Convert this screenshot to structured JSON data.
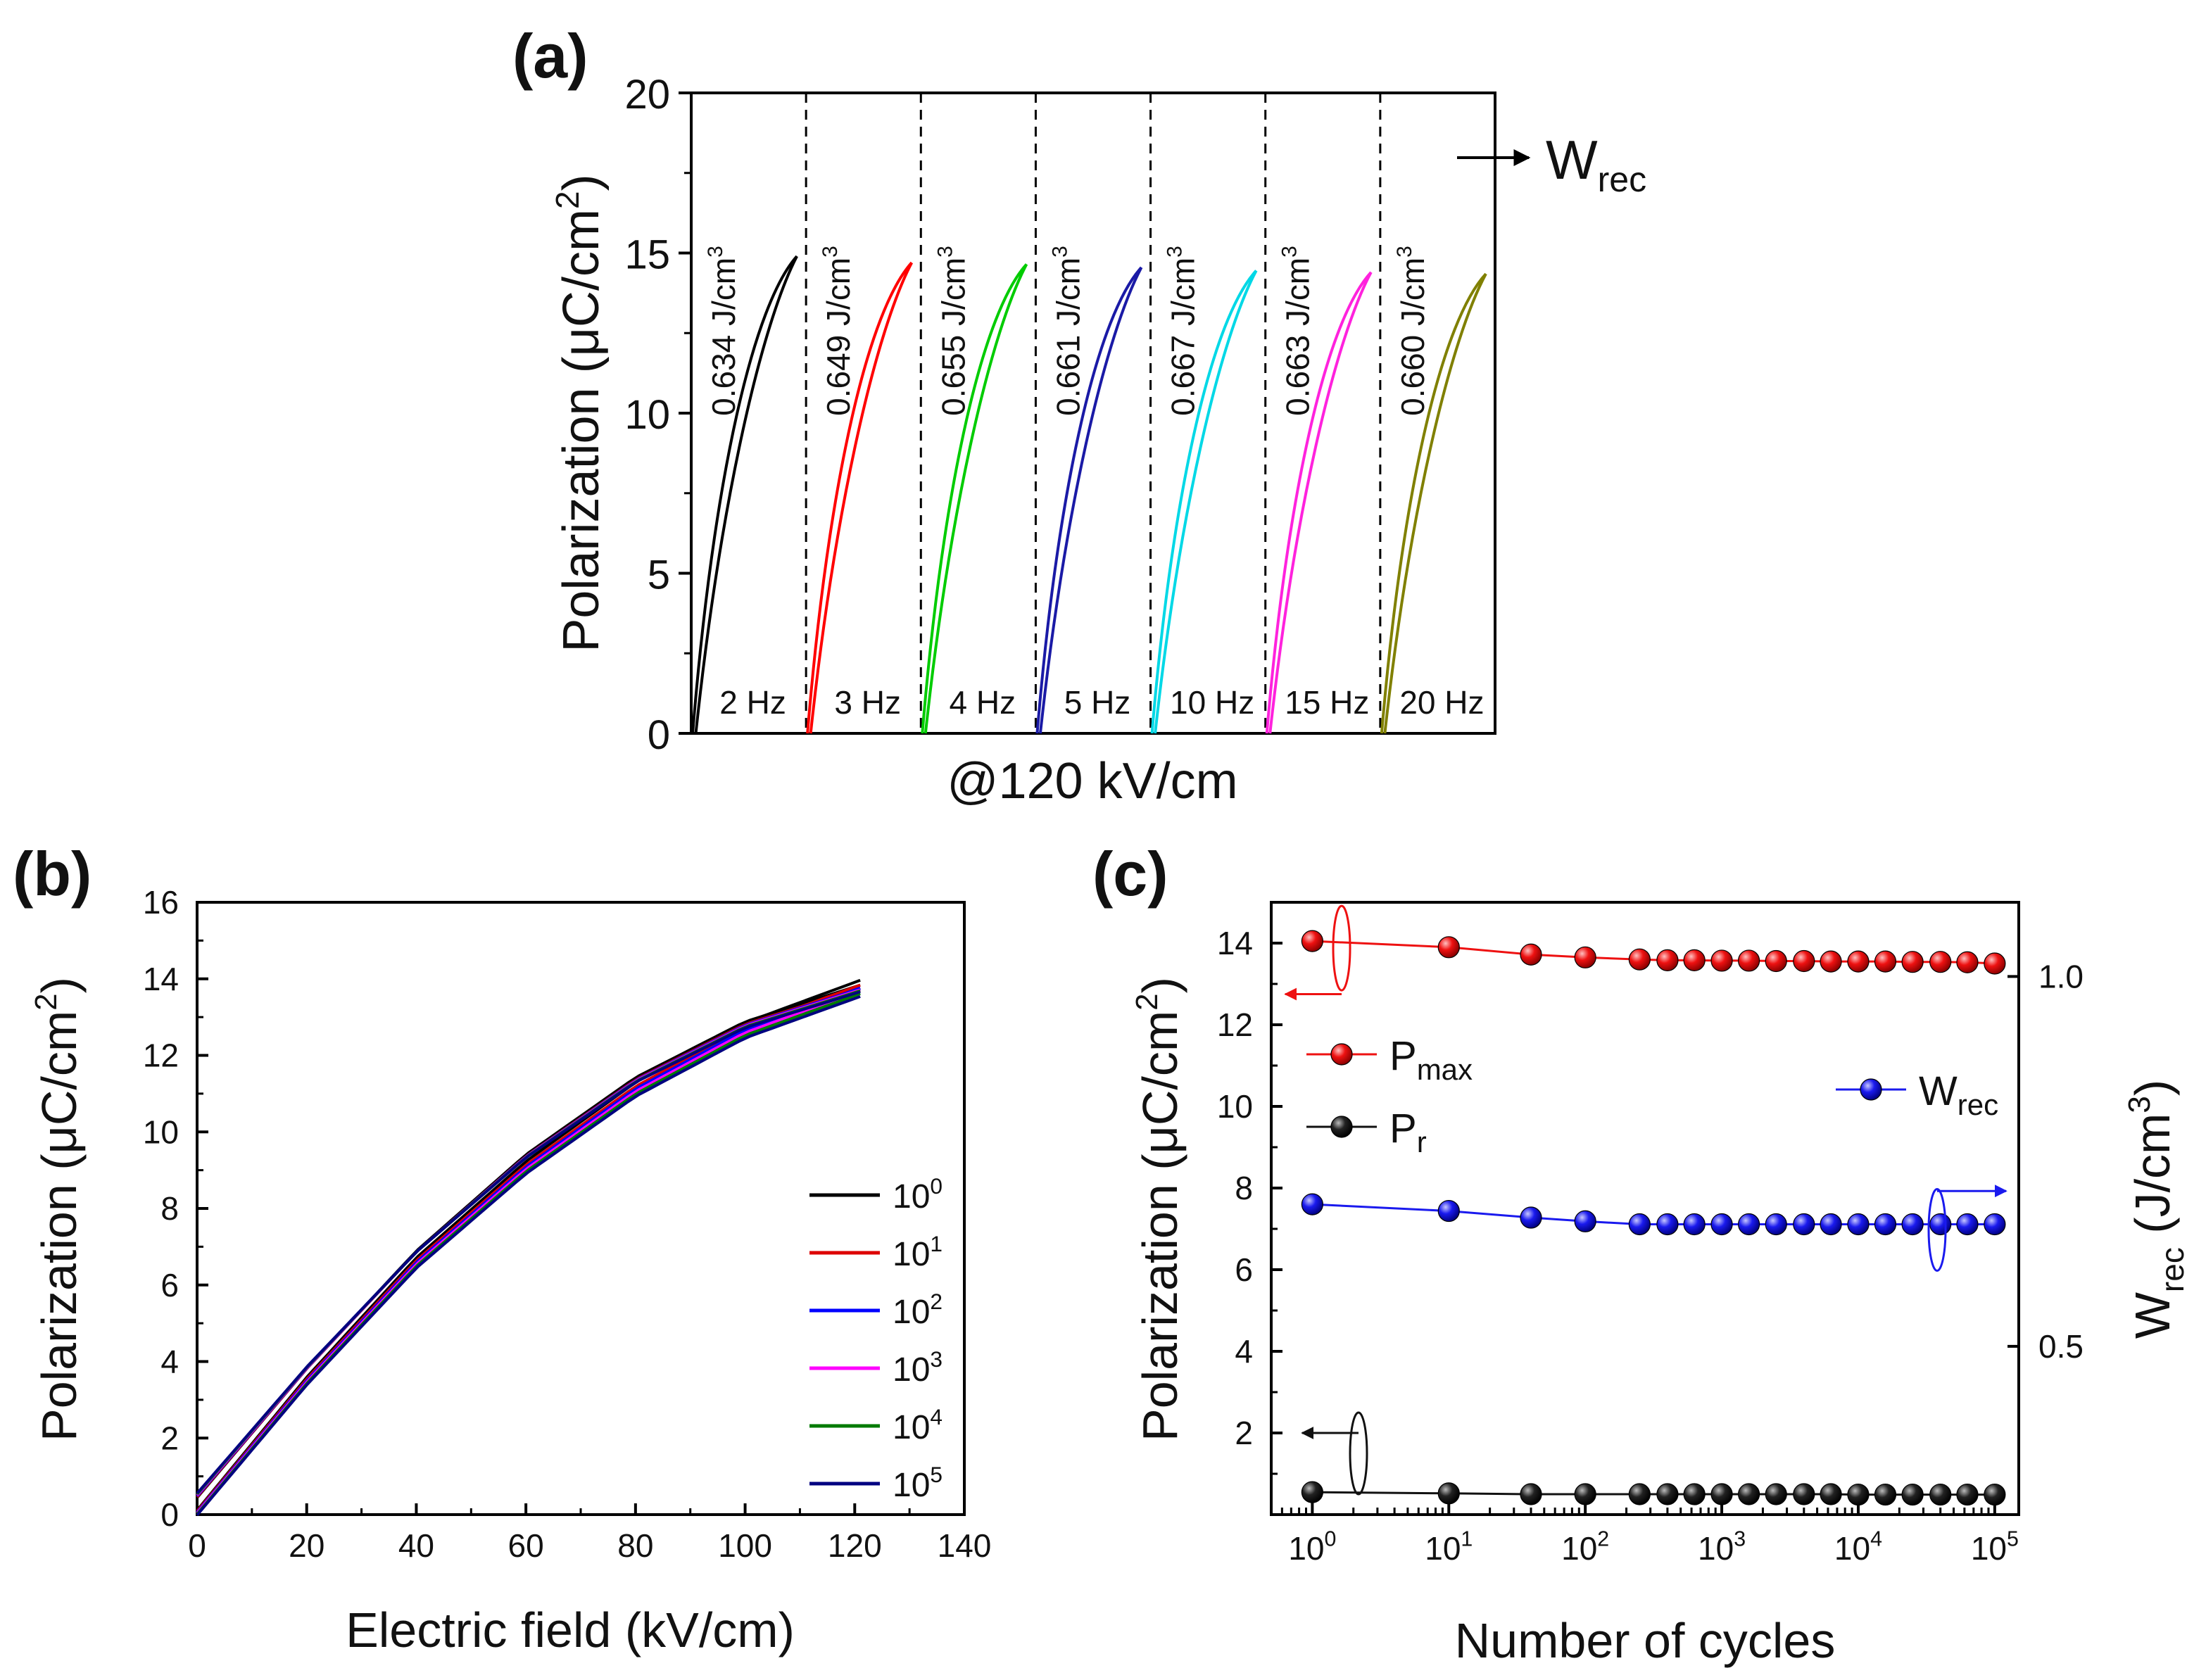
{
  "panel_letters": {
    "a": "(a)",
    "b": "(b)",
    "c": "(c)"
  },
  "chart_data": [
    {
      "id": "a",
      "type": "line",
      "title": "(a)",
      "xlabel": "@120 kV/cm",
      "ylabel": "Polarization (μC/cm2)",
      "ylabel_main": "Polarization (μC/cm",
      "ylabel_sup": "2",
      "ylabel_close": ")",
      "ylim": [
        0,
        20
      ],
      "yticks": [
        "0",
        "5",
        "10",
        "15",
        "20"
      ],
      "wrec_label": {
        "main": "W",
        "sub": "rec"
      },
      "segments": [
        {
          "freq": "2 Hz",
          "energy": "0.634 J/cm3",
          "energy_main": "0.634 J/cm",
          "energy_sup": "3",
          "color": "#000000",
          "pmax": 14.9
        },
        {
          "freq": "3 Hz",
          "energy": "0.649 J/cm3",
          "energy_main": "0.649 J/cm",
          "energy_sup": "3",
          "color": "#ff0000",
          "pmax": 14.7
        },
        {
          "freq": "4 Hz",
          "energy": "0.655 J/cm3",
          "energy_main": "0.655 J/cm",
          "energy_sup": "3",
          "color": "#00cc00",
          "pmax": 14.65
        },
        {
          "freq": "5 Hz",
          "energy": "0.661 J/cm3",
          "energy_main": "0.661 J/cm",
          "energy_sup": "3",
          "color": "#1a1aa6",
          "pmax": 14.55
        },
        {
          "freq": "10 Hz",
          "energy": "0.667 J/cm3",
          "energy_main": "0.667 J/cm",
          "energy_sup": "3",
          "color": "#00d8e6",
          "pmax": 14.45
        },
        {
          "freq": "15 Hz",
          "energy": "0.663 J/cm3",
          "energy_main": "0.663 J/cm",
          "energy_sup": "3",
          "color": "#ff22dd",
          "pmax": 14.4
        },
        {
          "freq": "20 Hz",
          "energy": "0.660 J/cm3",
          "energy_main": "0.660 J/cm",
          "energy_sup": "3",
          "color": "#808000",
          "pmax": 14.35
        }
      ]
    },
    {
      "id": "b",
      "type": "line",
      "title": "(b)",
      "xlabel": "Electric field (kV/cm)",
      "ylabel": "Polarization (μC/cm2)",
      "ylabel_main": "Polarization (μC/cm",
      "ylabel_sup": "2",
      "ylabel_close": ")",
      "xlim": [
        0,
        140
      ],
      "ylim": [
        0,
        16
      ],
      "xticks": [
        "0",
        "20",
        "40",
        "60",
        "80",
        "100",
        "120",
        "140"
      ],
      "yticks": [
        "0",
        "2",
        "4",
        "6",
        "8",
        "10",
        "12",
        "14",
        "16"
      ],
      "emax": 121,
      "upper_branch": {
        "x": [
          0,
          20,
          40,
          60,
          80,
          100,
          121
        ],
        "y": [
          0.5,
          3.85,
          6.9,
          9.4,
          11.4,
          12.85,
          13.8
        ]
      },
      "lower_branch": {
        "x": [
          0,
          20,
          40,
          60,
          80,
          100,
          121
        ],
        "y": [
          0.05,
          3.5,
          6.6,
          9.1,
          11.15,
          12.7,
          13.8
        ]
      },
      "series": [
        {
          "name": "10^0",
          "base": "10",
          "exp": "0",
          "color": "#000000",
          "pmax": 13.9
        },
        {
          "name": "10^1",
          "base": "10",
          "exp": "1",
          "color": "#dd0000",
          "pmax": 13.8
        },
        {
          "name": "10^2",
          "base": "10",
          "exp": "2",
          "color": "#0000ff",
          "pmax": 13.75
        },
        {
          "name": "10^3",
          "base": "10",
          "exp": "3",
          "color": "#ff00ff",
          "pmax": 13.7
        },
        {
          "name": "10^4",
          "base": "10",
          "exp": "4",
          "color": "#007a00",
          "pmax": 13.65
        },
        {
          "name": "10^5",
          "base": "10",
          "exp": "5",
          "color": "#000080",
          "pmax": 13.6
        }
      ]
    },
    {
      "id": "c",
      "type": "scatter",
      "title": "(c)",
      "xlabel": "Number of cycles",
      "ylabel": "Polarization (μC/cm2)",
      "ylabel_main": "Polarization (μC/cm",
      "ylabel_sup": "2",
      "ylabel_close": ")",
      "y2label": "Wrec (J/cm3)",
      "y2label_main": "W",
      "y2label_sub": "rec",
      "y2label_mid": " (J/cm",
      "y2label_sup": "3",
      "y2label_close": ")",
      "xscale": "log",
      "xlim": [
        0.5,
        150000
      ],
      "ylim": [
        0,
        15
      ],
      "y2lim": [
        0.2725,
        1.1003
      ],
      "xticks": [
        {
          "base": "10",
          "exp": "0"
        },
        {
          "base": "10",
          "exp": "1"
        },
        {
          "base": "10",
          "exp": "2"
        },
        {
          "base": "10",
          "exp": "3"
        },
        {
          "base": "10",
          "exp": "4"
        },
        {
          "base": "10",
          "exp": "5"
        }
      ],
      "yticks": [
        "2",
        "4",
        "6",
        "8",
        "10",
        "12",
        "14"
      ],
      "y2ticks": [
        "0.5",
        "1.0"
      ],
      "x": [
        1,
        10,
        40,
        100,
        250,
        400,
        630,
        1000,
        1580,
        2500,
        4000,
        6300,
        10000,
        15800,
        25000,
        40000,
        63000,
        100000
      ],
      "series": [
        {
          "name": "Pmax",
          "label_main": "P",
          "label_sub": "max",
          "color": "#ee1111",
          "axis": "left",
          "values": [
            14.05,
            13.9,
            13.72,
            13.65,
            13.6,
            13.58,
            13.58,
            13.57,
            13.57,
            13.56,
            13.56,
            13.55,
            13.55,
            13.55,
            13.54,
            13.54,
            13.53,
            13.5
          ]
        },
        {
          "name": "Pr",
          "label_main": "P",
          "label_sub": "r",
          "color": "#111111",
          "axis": "left",
          "values": [
            0.55,
            0.52,
            0.5,
            0.5,
            0.5,
            0.5,
            0.5,
            0.5,
            0.5,
            0.5,
            0.5,
            0.5,
            0.49,
            0.49,
            0.49,
            0.49,
            0.49,
            0.49
          ]
        },
        {
          "name": "Wrec",
          "label_main": "W",
          "label_sub": "rec",
          "color": "#1a1aee",
          "axis": "right",
          "values": [
            0.692,
            0.683,
            0.674,
            0.669,
            0.665,
            0.665,
            0.665,
            0.665,
            0.665,
            0.665,
            0.665,
            0.665,
            0.665,
            0.665,
            0.665,
            0.665,
            0.665,
            0.665
          ]
        }
      ]
    }
  ]
}
